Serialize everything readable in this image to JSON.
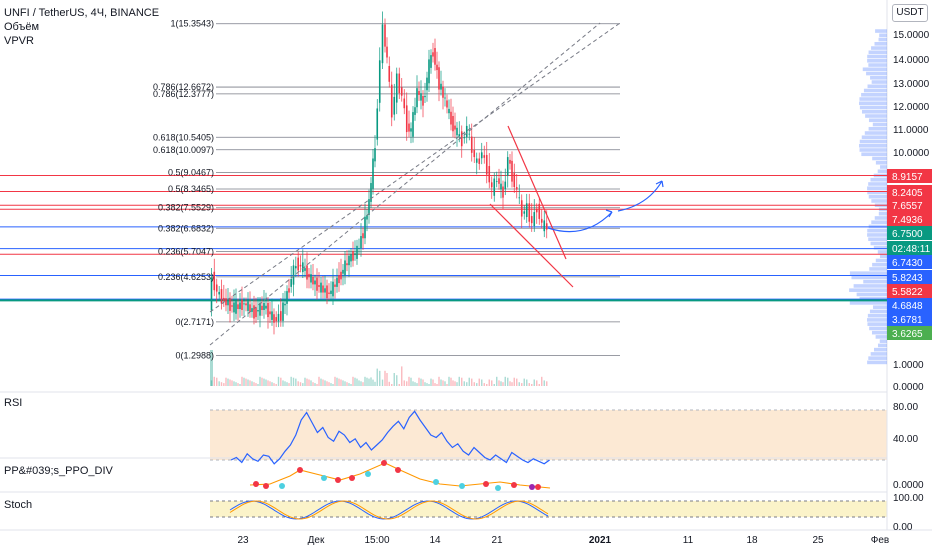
{
  "header": {
    "symbol_line": "UNFI / TetherUS, 4Ч, BINANCE",
    "indicator_1": "Объём",
    "indicator_2": "VPVR",
    "currency_button": "USDT"
  },
  "panes": {
    "rsi": {
      "label": "RSI",
      "ticks": [
        "80.00",
        "40.00"
      ]
    },
    "ppo": {
      "label": "PP&#039;s_PPO_DIV",
      "ticks": [
        "0.0000"
      ]
    },
    "stoch": {
      "label": "Stoch",
      "ticks": [
        "100.00",
        "0.00"
      ]
    }
  },
  "price_axis": {
    "ticks": [
      "15.0000",
      "14.0000",
      "13.0000",
      "12.0000",
      "11.0000",
      "10.0000",
      "1.0000",
      "0.0000"
    ]
  },
  "price_badges": [
    {
      "text": "8.9157",
      "color": "#f23645",
      "price": 8.9157
    },
    {
      "text": "8.2405",
      "color": "#f23645",
      "price": 8.2405
    },
    {
      "text": "7.6557",
      "color": "#f23645",
      "price": 7.6557
    },
    {
      "text": "7.4936",
      "color": "#f23645",
      "price": 7.4936
    },
    {
      "text": "6.7500",
      "color": "#089981",
      "price": 6.75
    },
    {
      "text": "02:48:11",
      "color": "#089981",
      "price": 6.35
    },
    {
      "text": "6.7430",
      "color": "#2962ff",
      "price": 5.97
    },
    {
      "text": "5.8243",
      "color": "#2962ff",
      "price": 5.62
    },
    {
      "text": "5.5822",
      "color": "#f23645",
      "price": 5.26
    },
    {
      "text": "4.6848",
      "color": "#2962ff",
      "price": 4.9
    },
    {
      "text": "3.6781",
      "color": "#2962ff",
      "price": 4.54
    },
    {
      "text": "3.6265",
      "color": "#4caf50",
      "price": 4.1
    }
  ],
  "time_axis": {
    "ticks": [
      "23",
      "Дек",
      "15:00",
      "14",
      "21",
      "2021",
      "11",
      "18",
      "25",
      "Фев"
    ]
  },
  "fib_levels": [
    {
      "label": "1(15.3543)",
      "price": 15.35
    },
    {
      "label": "0.786(12.6672)",
      "price": 12.667
    },
    {
      "label": "0.786(12.3777)",
      "price": 12.378
    },
    {
      "label": "0.618(10.5405)",
      "price": 10.54
    },
    {
      "label": "0.618(10.0097)",
      "price": 10.01
    },
    {
      "label": "0.5(9.0467)",
      "price": 9.047
    },
    {
      "label": "0.5(8.3465)",
      "price": 8.346
    },
    {
      "label": "0.382(7.5529)",
      "price": 7.553
    },
    {
      "label": "0.382(6.6832)",
      "price": 6.683
    },
    {
      "label": "0.236(5.7047)",
      "price": 5.705
    },
    {
      "label": "0.236(4.6253)",
      "price": 4.625
    },
    {
      "label": "0(2.7171)",
      "price": 2.717
    },
    {
      "label": "0(1.2988)",
      "price": 1.299
    }
  ],
  "colors": {
    "up": "#089981",
    "down": "#f23645",
    "blue": "#2962ff",
    "fib": "#787b86",
    "rsi": "#2962ff"
  }
}
